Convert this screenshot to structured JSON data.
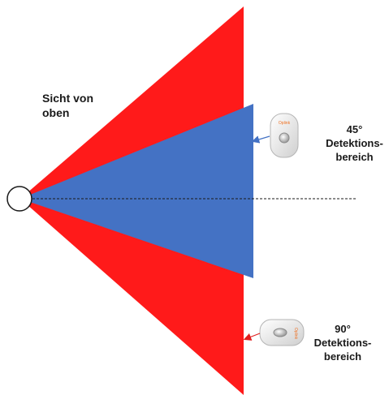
{
  "labels": {
    "view": "Sicht von\noben",
    "sensor_45": "45° Detektions-\nbereich",
    "sensor_90": "90°\nDetektions-\nbereich"
  },
  "sensor_brand": "Oplink",
  "colors": {
    "outer_range": "#FF1A1A",
    "inner_range": "#4472C4",
    "sensor_45_arrow": "#4472C4",
    "sensor_90_arrow": "#E02020",
    "brand_text": "#F07020"
  }
}
